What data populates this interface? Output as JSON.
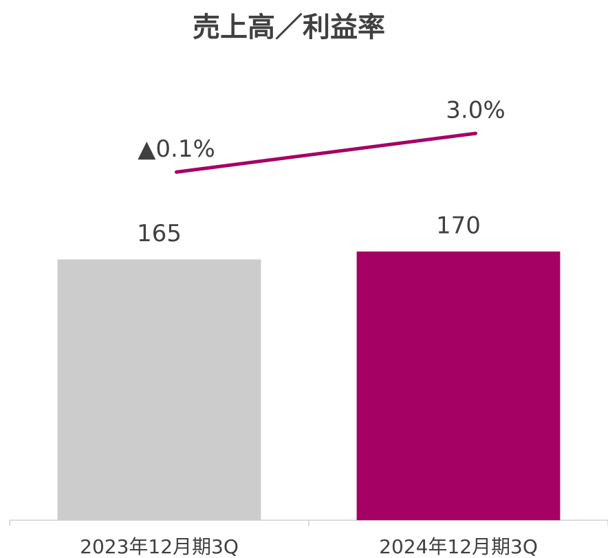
{
  "chart_data": {
    "type": "bar",
    "title": "売上高／利益率",
    "categories": [
      "2023年12月期3Q",
      "2024年12月期3Q"
    ],
    "series": [
      {
        "type": "bar",
        "colors": [
          "#cccccc",
          "#a50064"
        ],
        "values": [
          165,
          170
        ]
      },
      {
        "type": "line",
        "axis": "y2",
        "color": "#a50064",
        "values": [
          -0.1,
          3.0
        ],
        "value_labels": [
          "▲0.1%",
          "3.0%"
        ]
      }
    ],
    "ylim": [
      0,
      300
    ],
    "y2lim": [
      -28,
      10
    ]
  }
}
